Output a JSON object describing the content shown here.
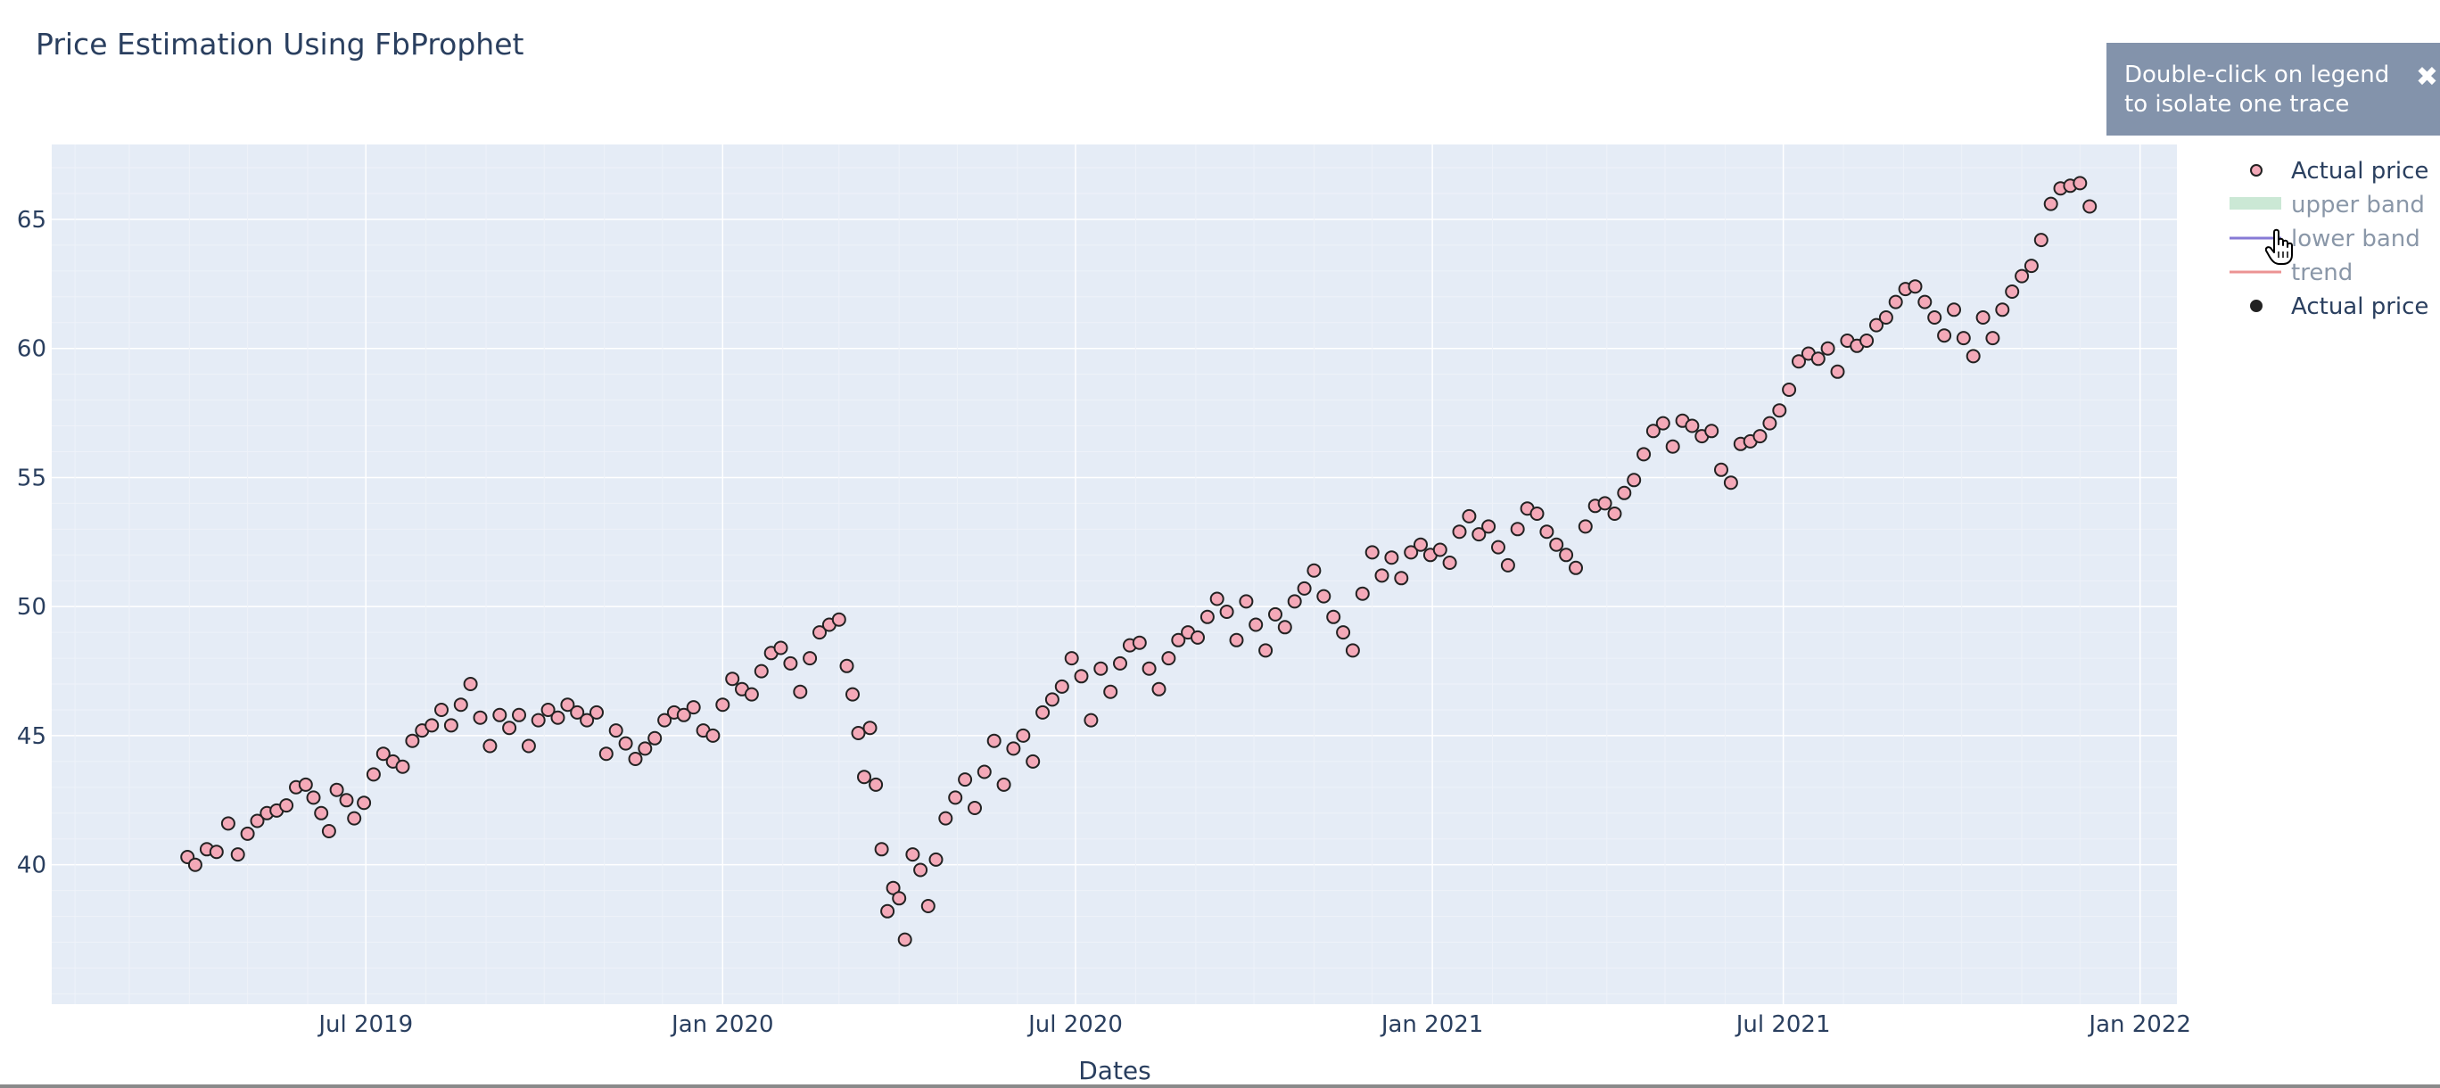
{
  "chart_data": {
    "type": "scatter",
    "title": "Price Estimation Using FbProphet",
    "xlabel": "Dates",
    "ylabel": "",
    "x_ticks": [
      "Jul 2019",
      "Jan 2020",
      "Jul 2020",
      "Jan 2021",
      "Jul 2021",
      "Jan 2022"
    ],
    "x_range": [
      "2019-01-20",
      "2022-01-20"
    ],
    "y_ticks": [
      40,
      45,
      50,
      55,
      60,
      65
    ],
    "ylim": [
      34.6,
      67.9
    ],
    "grid": true,
    "legend_position": "top-right",
    "legend": [
      {
        "name": "Actual price",
        "symbol": "marker",
        "color": "#f4a9b8",
        "hidden": false
      },
      {
        "name": "upper band",
        "symbol": "fill",
        "color": "#a8d8b9",
        "hidden": true
      },
      {
        "name": "lower band",
        "symbol": "line",
        "color": "#6a5acd",
        "hidden": true
      },
      {
        "name": "trend",
        "symbol": "line",
        "color": "#e87979",
        "hidden": true
      },
      {
        "name": "Actual price",
        "symbol": "marker",
        "color": "#222222",
        "hidden": false
      }
    ],
    "series": [
      {
        "name": "Actual price",
        "color": "#f4a9b8",
        "points": [
          [
            "2019-03-31",
            40.3
          ],
          [
            "2019-04-04",
            40.0
          ],
          [
            "2019-04-10",
            40.6
          ],
          [
            "2019-04-15",
            40.5
          ],
          [
            "2019-04-21",
            41.6
          ],
          [
            "2019-04-26",
            40.4
          ],
          [
            "2019-05-01",
            41.2
          ],
          [
            "2019-05-06",
            41.7
          ],
          [
            "2019-05-11",
            42.0
          ],
          [
            "2019-05-16",
            42.1
          ],
          [
            "2019-05-21",
            42.3
          ],
          [
            "2019-05-26",
            43.0
          ],
          [
            "2019-05-31",
            43.1
          ],
          [
            "2019-06-04",
            42.6
          ],
          [
            "2019-06-08",
            42.0
          ],
          [
            "2019-06-12",
            41.3
          ],
          [
            "2019-06-16",
            42.9
          ],
          [
            "2019-06-21",
            42.5
          ],
          [
            "2019-06-25",
            41.8
          ],
          [
            "2019-06-30",
            42.4
          ],
          [
            "2019-07-05",
            43.5
          ],
          [
            "2019-07-10",
            44.3
          ],
          [
            "2019-07-15",
            44.0
          ],
          [
            "2019-07-20",
            43.8
          ],
          [
            "2019-07-25",
            44.8
          ],
          [
            "2019-07-30",
            45.2
          ],
          [
            "2019-08-04",
            45.4
          ],
          [
            "2019-08-09",
            46.0
          ],
          [
            "2019-08-14",
            45.4
          ],
          [
            "2019-08-19",
            46.2
          ],
          [
            "2019-08-24",
            47.0
          ],
          [
            "2019-08-29",
            45.7
          ],
          [
            "2019-09-03",
            44.6
          ],
          [
            "2019-09-08",
            45.8
          ],
          [
            "2019-09-13",
            45.3
          ],
          [
            "2019-09-18",
            45.8
          ],
          [
            "2019-09-23",
            44.6
          ],
          [
            "2019-09-28",
            45.6
          ],
          [
            "2019-10-03",
            46.0
          ],
          [
            "2019-10-08",
            45.7
          ],
          [
            "2019-10-13",
            46.2
          ],
          [
            "2019-10-18",
            45.9
          ],
          [
            "2019-10-23",
            45.6
          ],
          [
            "2019-10-28",
            45.9
          ],
          [
            "2019-11-02",
            44.3
          ],
          [
            "2019-11-07",
            45.2
          ],
          [
            "2019-11-12",
            44.7
          ],
          [
            "2019-11-17",
            44.1
          ],
          [
            "2019-11-22",
            44.5
          ],
          [
            "2019-11-27",
            44.9
          ],
          [
            "2019-12-02",
            45.6
          ],
          [
            "2019-12-07",
            45.9
          ],
          [
            "2019-12-12",
            45.8
          ],
          [
            "2019-12-17",
            46.1
          ],
          [
            "2019-12-22",
            45.2
          ],
          [
            "2019-12-27",
            45.0
          ],
          [
            "2020-01-01",
            46.2
          ],
          [
            "2020-01-06",
            47.2
          ],
          [
            "2020-01-11",
            46.8
          ],
          [
            "2020-01-16",
            46.6
          ],
          [
            "2020-01-21",
            47.5
          ],
          [
            "2020-01-26",
            48.2
          ],
          [
            "2020-01-31",
            48.4
          ],
          [
            "2020-02-05",
            47.8
          ],
          [
            "2020-02-10",
            46.7
          ],
          [
            "2020-02-15",
            48.0
          ],
          [
            "2020-02-20",
            49.0
          ],
          [
            "2020-02-25",
            49.3
          ],
          [
            "2020-03-01",
            49.5
          ],
          [
            "2020-03-05",
            47.7
          ],
          [
            "2020-03-08",
            46.6
          ],
          [
            "2020-03-11",
            45.1
          ],
          [
            "2020-03-14",
            43.4
          ],
          [
            "2020-03-17",
            45.3
          ],
          [
            "2020-03-20",
            43.1
          ],
          [
            "2020-03-23",
            40.6
          ],
          [
            "2020-03-26",
            38.2
          ],
          [
            "2020-03-29",
            39.1
          ],
          [
            "2020-04-01",
            38.7
          ],
          [
            "2020-04-04",
            37.1
          ],
          [
            "2020-04-08",
            40.4
          ],
          [
            "2020-04-12",
            39.8
          ],
          [
            "2020-04-16",
            38.4
          ],
          [
            "2020-04-20",
            40.2
          ],
          [
            "2020-04-25",
            41.8
          ],
          [
            "2020-04-30",
            42.6
          ],
          [
            "2020-05-05",
            43.3
          ],
          [
            "2020-05-10",
            42.2
          ],
          [
            "2020-05-15",
            43.6
          ],
          [
            "2020-05-20",
            44.8
          ],
          [
            "2020-05-25",
            43.1
          ],
          [
            "2020-05-30",
            44.5
          ],
          [
            "2020-06-04",
            45.0
          ],
          [
            "2020-06-09",
            44.0
          ],
          [
            "2020-06-14",
            45.9
          ],
          [
            "2020-06-19",
            46.4
          ],
          [
            "2020-06-24",
            46.9
          ],
          [
            "2020-06-29",
            48.0
          ],
          [
            "2020-07-04",
            47.3
          ],
          [
            "2020-07-09",
            45.6
          ],
          [
            "2020-07-14",
            47.6
          ],
          [
            "2020-07-19",
            46.7
          ],
          [
            "2020-07-24",
            47.8
          ],
          [
            "2020-07-29",
            48.5
          ],
          [
            "2020-08-03",
            48.6
          ],
          [
            "2020-08-08",
            47.6
          ],
          [
            "2020-08-13",
            46.8
          ],
          [
            "2020-08-18",
            48.0
          ],
          [
            "2020-08-23",
            48.7
          ],
          [
            "2020-08-28",
            49.0
          ],
          [
            "2020-09-02",
            48.8
          ],
          [
            "2020-09-07",
            49.6
          ],
          [
            "2020-09-12",
            50.3
          ],
          [
            "2020-09-17",
            49.8
          ],
          [
            "2020-09-22",
            48.7
          ],
          [
            "2020-09-27",
            50.2
          ],
          [
            "2020-10-02",
            49.3
          ],
          [
            "2020-10-07",
            48.3
          ],
          [
            "2020-10-12",
            49.7
          ],
          [
            "2020-10-17",
            49.2
          ],
          [
            "2020-10-22",
            50.2
          ],
          [
            "2020-10-27",
            50.7
          ],
          [
            "2020-11-01",
            51.4
          ],
          [
            "2020-11-06",
            50.4
          ],
          [
            "2020-11-11",
            49.6
          ],
          [
            "2020-11-16",
            49.0
          ],
          [
            "2020-11-21",
            48.3
          ],
          [
            "2020-11-26",
            50.5
          ],
          [
            "2020-12-01",
            52.1
          ],
          [
            "2020-12-06",
            51.2
          ],
          [
            "2020-12-11",
            51.9
          ],
          [
            "2020-12-16",
            51.1
          ],
          [
            "2020-12-21",
            52.1
          ],
          [
            "2020-12-26",
            52.4
          ],
          [
            "2020-12-31",
            52.0
          ],
          [
            "2021-01-05",
            52.2
          ],
          [
            "2021-01-10",
            51.7
          ],
          [
            "2021-01-15",
            52.9
          ],
          [
            "2021-01-20",
            53.5
          ],
          [
            "2021-01-25",
            52.8
          ],
          [
            "2021-01-30",
            53.1
          ],
          [
            "2021-02-04",
            52.3
          ],
          [
            "2021-02-09",
            51.6
          ],
          [
            "2021-02-14",
            53.0
          ],
          [
            "2021-02-19",
            53.8
          ],
          [
            "2021-02-24",
            53.6
          ],
          [
            "2021-03-01",
            52.9
          ],
          [
            "2021-03-06",
            52.4
          ],
          [
            "2021-03-11",
            52.0
          ],
          [
            "2021-03-16",
            51.5
          ],
          [
            "2021-03-21",
            53.1
          ],
          [
            "2021-03-26",
            53.9
          ],
          [
            "2021-03-31",
            54.0
          ],
          [
            "2021-04-05",
            53.6
          ],
          [
            "2021-04-10",
            54.4
          ],
          [
            "2021-04-15",
            54.9
          ],
          [
            "2021-04-20",
            55.9
          ],
          [
            "2021-04-25",
            56.8
          ],
          [
            "2021-04-30",
            57.1
          ],
          [
            "2021-05-05",
            56.2
          ],
          [
            "2021-05-10",
            57.2
          ],
          [
            "2021-05-15",
            57.0
          ],
          [
            "2021-05-20",
            56.6
          ],
          [
            "2021-05-25",
            56.8
          ],
          [
            "2021-05-30",
            55.3
          ],
          [
            "2021-06-04",
            54.8
          ],
          [
            "2021-06-09",
            56.3
          ],
          [
            "2021-06-14",
            56.4
          ],
          [
            "2021-06-19",
            56.6
          ],
          [
            "2021-06-24",
            57.1
          ],
          [
            "2021-06-29",
            57.6
          ],
          [
            "2021-07-04",
            58.4
          ],
          [
            "2021-07-09",
            59.5
          ],
          [
            "2021-07-14",
            59.8
          ],
          [
            "2021-07-19",
            59.6
          ],
          [
            "2021-07-24",
            60.0
          ],
          [
            "2021-07-29",
            59.1
          ],
          [
            "2021-08-03",
            60.3
          ],
          [
            "2021-08-08",
            60.1
          ],
          [
            "2021-08-13",
            60.3
          ],
          [
            "2021-08-18",
            60.9
          ],
          [
            "2021-08-23",
            61.2
          ],
          [
            "2021-08-28",
            61.8
          ],
          [
            "2021-09-02",
            62.3
          ],
          [
            "2021-09-07",
            62.4
          ],
          [
            "2021-09-12",
            61.8
          ],
          [
            "2021-09-17",
            61.2
          ],
          [
            "2021-09-22",
            60.5
          ],
          [
            "2021-09-27",
            61.5
          ],
          [
            "2021-10-02",
            60.4
          ],
          [
            "2021-10-07",
            59.7
          ],
          [
            "2021-10-12",
            61.2
          ],
          [
            "2021-10-17",
            60.4
          ],
          [
            "2021-10-22",
            61.5
          ],
          [
            "2021-10-27",
            62.2
          ],
          [
            "2021-11-01",
            62.8
          ],
          [
            "2021-11-06",
            63.2
          ],
          [
            "2021-11-11",
            64.2
          ],
          [
            "2021-11-16",
            65.6
          ],
          [
            "2021-11-21",
            66.2
          ],
          [
            "2021-11-26",
            66.3
          ],
          [
            "2021-12-01",
            66.4
          ],
          [
            "2021-12-06",
            65.5
          ]
        ]
      }
    ]
  },
  "tooltip": {
    "text": "Double-click on legend to isolate one trace",
    "close_icon": "✖"
  }
}
